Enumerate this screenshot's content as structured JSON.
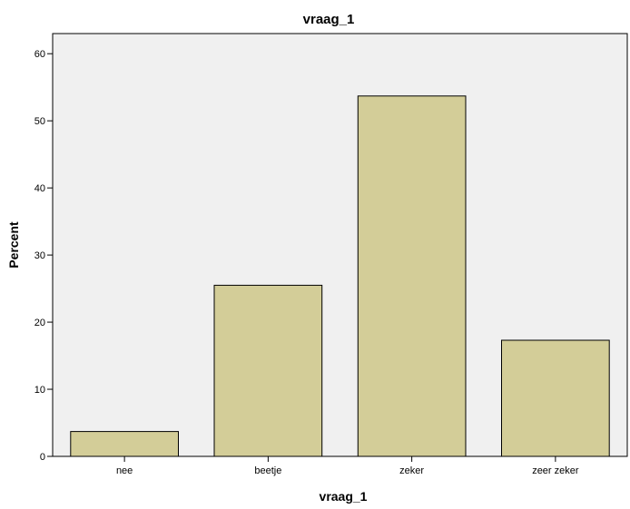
{
  "chart_data": {
    "type": "bar",
    "title": "vraag_1",
    "xlabel": "vraag_1",
    "ylabel": "Percent",
    "categories": [
      "nee",
      "beetje",
      "zeker",
      "zeer zeker"
    ],
    "values": [
      3.7,
      25.5,
      53.7,
      17.3
    ],
    "ylim": [
      0,
      63
    ],
    "yticks": [
      0,
      10,
      20,
      30,
      40,
      50,
      60
    ],
    "grid": false,
    "legend": "none",
    "colors": {
      "bar_fill": "#d3cd98",
      "bar_stroke": "#000000",
      "plot_background": "#f0f0f0",
      "axis": "#000000"
    }
  }
}
